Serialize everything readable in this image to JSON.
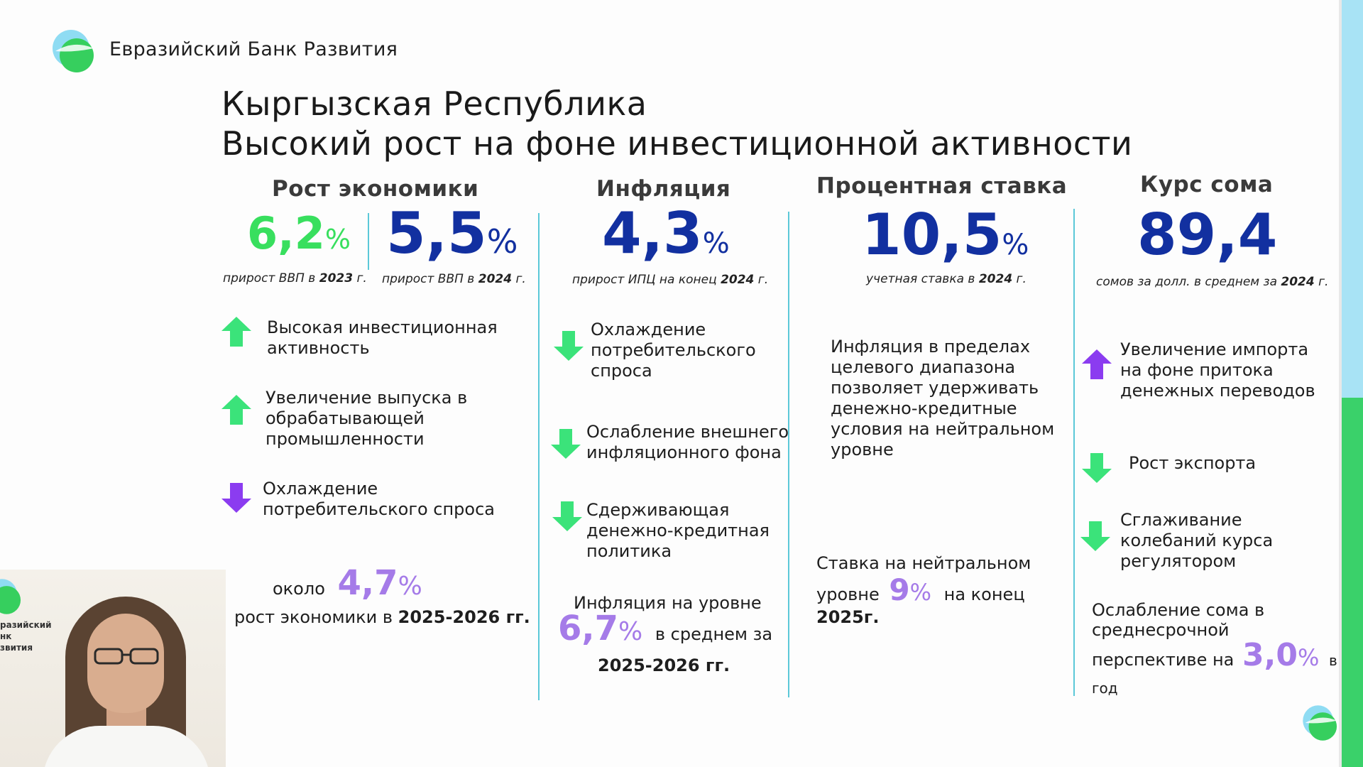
{
  "brand": {
    "name": "Евразийский Банк Развития"
  },
  "title": {
    "line1": "Кыргызская Республика",
    "line2": "Высокий рост на фоне инвестиционной активности"
  },
  "colors": {
    "green": "#38df5e",
    "navy": "#1230a0",
    "violet": "#a57be8",
    "arrow_green": "#3be37a",
    "arrow_violet": "#8b3cf0",
    "divider": "#5bc8d8"
  },
  "columns": [
    {
      "heading": "Рост экономики",
      "metrics": [
        {
          "value": "6,2",
          "unit": "%",
          "caption_pre": "прирост ВВП в ",
          "caption_year": "2023",
          "caption_post": " г."
        },
        {
          "value": "5,5",
          "unit": "%",
          "caption_pre": "прирост ВВП в ",
          "caption_year": "2024",
          "caption_post": " г."
        }
      ],
      "factors": [
        {
          "text": "Высокая инвестиционная активность",
          "direction": "up",
          "icon": "arrow-up-green"
        },
        {
          "text": "Увеличение выпуска в обрабатывающей промышленности",
          "direction": "up",
          "icon": "arrow-up-green"
        },
        {
          "text": "Охлаждение потребительского спроса",
          "direction": "down",
          "icon": "arrow-down-violet"
        }
      ],
      "forecast": {
        "pre": "около",
        "value": "4,7",
        "unit": "%",
        "line2_pre": "рост экономики в ",
        "line2_bold": "2025-2026 гг."
      }
    },
    {
      "heading": "Инфляция",
      "metric": {
        "value": "4,3",
        "unit": "%",
        "caption_pre": "прирост ИПЦ на конец ",
        "caption_year": "2024",
        "caption_post": " г."
      },
      "factors": [
        {
          "text": "Охлаждение потребительского спроса",
          "direction": "down",
          "icon": "arrow-down-green"
        },
        {
          "text": "Ослабление внешнего инфляционного фона",
          "direction": "down",
          "icon": "arrow-down-green"
        },
        {
          "text": "Сдерживающая денежно-кредитная политика",
          "direction": "down",
          "icon": "arrow-down-green"
        }
      ],
      "forecast": {
        "line1": "Инфляция на уровне",
        "value": "6,7",
        "unit": "%",
        "post": "в среднем за",
        "line3_bold": "2025-2026 гг."
      }
    },
    {
      "heading": "Процентная ставка",
      "metric": {
        "value": "10,5",
        "unit": "%",
        "caption_pre": "учетная ставка в ",
        "caption_year": "2024",
        "caption_post": " г."
      },
      "text": "Инфляция в пределах целевого диапазона позволяет удерживать денежно-кредитные условия на нейтральном уровне",
      "forecast": {
        "line1": "Ставка на нейтральном",
        "pre": "уровне",
        "value": "9",
        "unit": "%",
        "post": "на конец",
        "line3_bold": "2025г."
      }
    },
    {
      "heading": "Курс сома",
      "metric": {
        "value": "89,4",
        "caption_pre": "сомов за долл. в среднем за ",
        "caption_year": "2024",
        "caption_post": " г."
      },
      "factors": [
        {
          "text": "Увеличение импорта на фоне притока денежных переводов",
          "direction": "up",
          "icon": "arrow-up-violet"
        },
        {
          "text": "Рост экспорта",
          "direction": "down",
          "icon": "arrow-down-green"
        },
        {
          "text": "Сглаживание колебаний курса регулятором",
          "direction": "down",
          "icon": "arrow-down-green"
        }
      ],
      "forecast": {
        "line1": "Ослабление сома в",
        "line2": "среднесрочной",
        "pre": "перспективе на",
        "value": "3,0",
        "unit": "%",
        "post": "в",
        "line4": "год"
      }
    }
  ],
  "video": {
    "logo_text_line1": "разийский",
    "logo_text_line2": "нк",
    "logo_text_line3": "звития"
  }
}
